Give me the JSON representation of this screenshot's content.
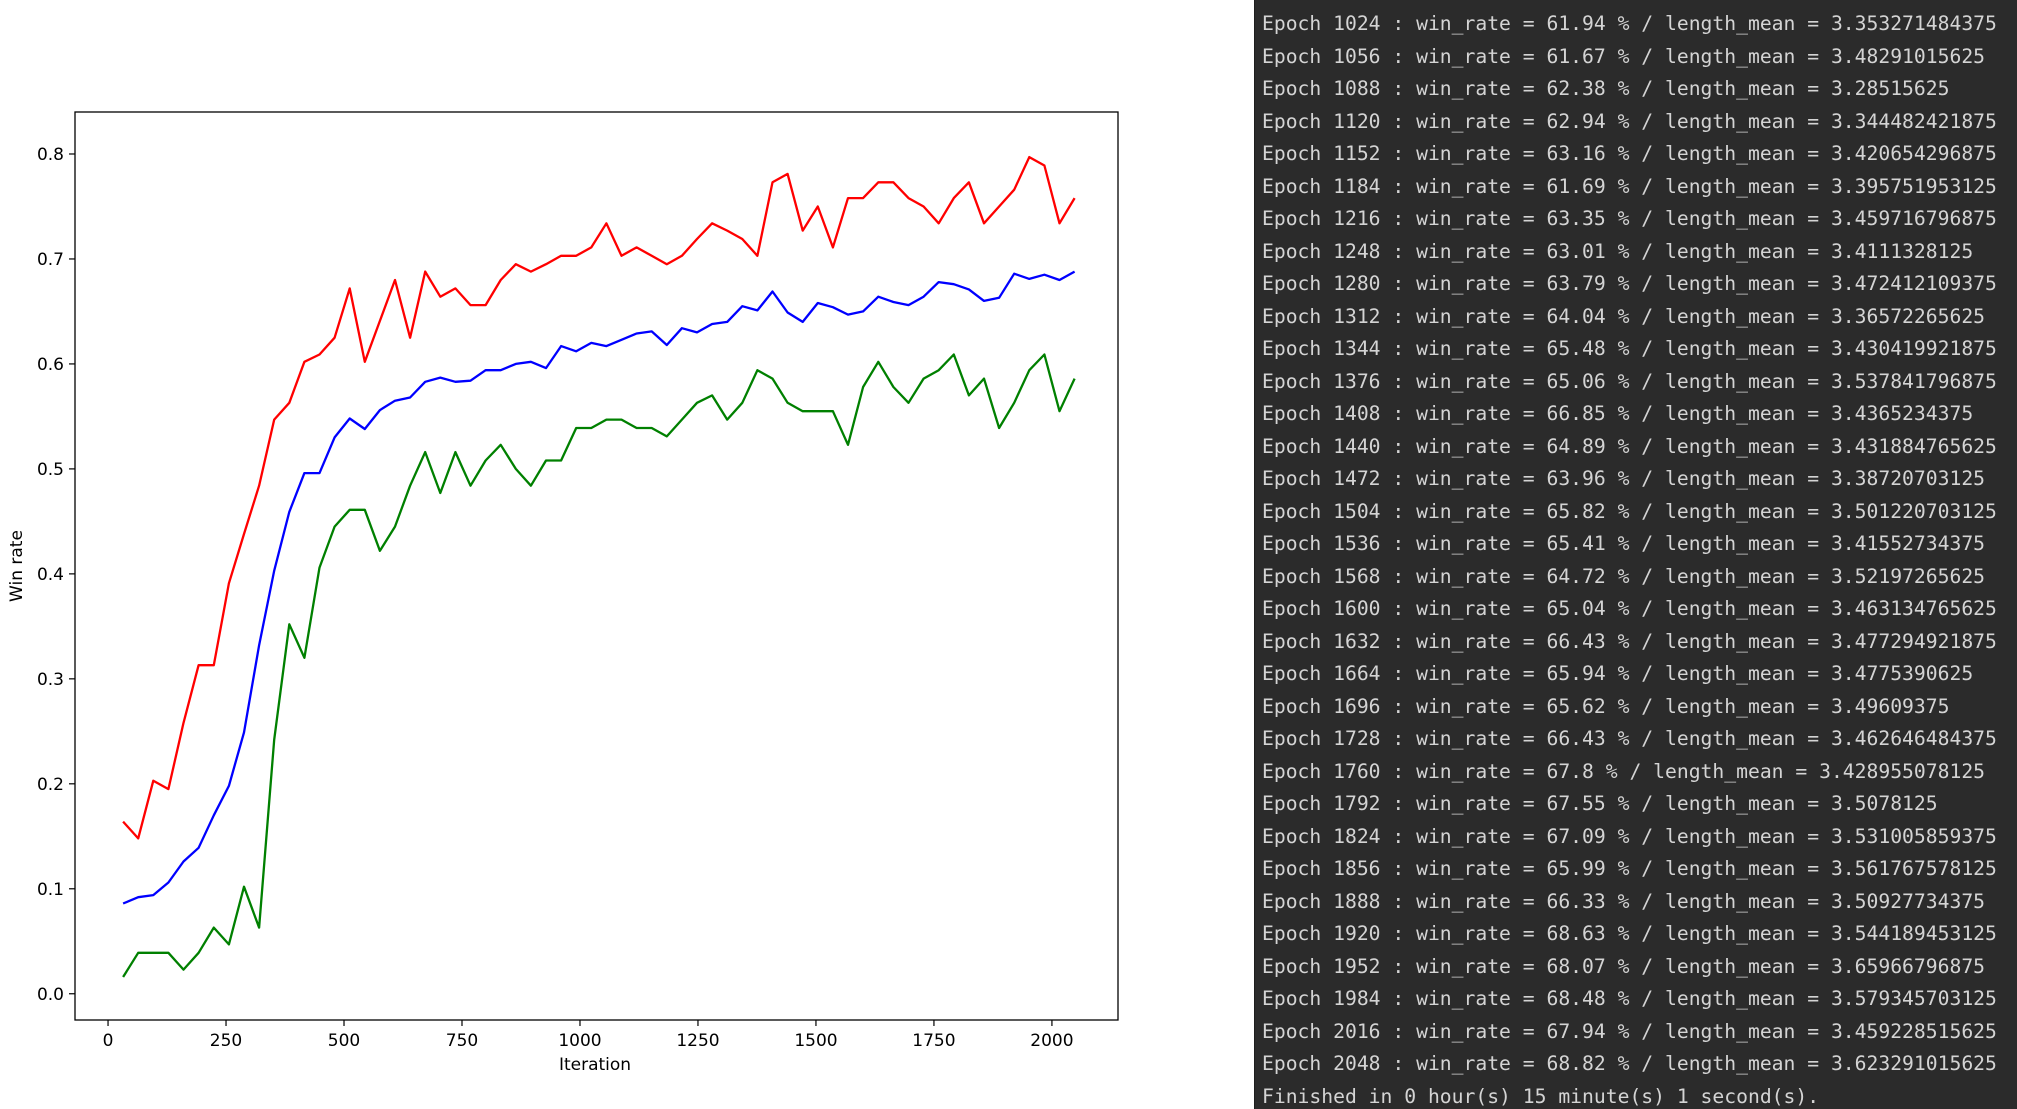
{
  "chart_data": {
    "type": "line",
    "title": "",
    "xlabel": "Iteration",
    "ylabel": "Win rate",
    "xlim": [
      -70,
      2140
    ],
    "ylim": [
      -0.025,
      0.84
    ],
    "x_ticks": [
      0,
      250,
      500,
      750,
      1000,
      1250,
      1500,
      1750,
      2000
    ],
    "y_ticks": [
      0.0,
      0.1,
      0.2,
      0.3,
      0.4,
      0.5,
      0.6,
      0.7,
      0.8
    ],
    "x_tick_labels": [
      "0",
      "250",
      "500",
      "750",
      "1000",
      "1250",
      "1500",
      "1750",
      "2000"
    ],
    "y_tick_labels": [
      "0.0",
      "0.1",
      "0.2",
      "0.3",
      "0.4",
      "0.5",
      "0.6",
      "0.7",
      "0.8"
    ],
    "grid": false,
    "x": [
      32,
      64,
      96,
      128,
      160,
      192,
      224,
      256,
      288,
      320,
      352,
      384,
      416,
      448,
      480,
      512,
      544,
      576,
      608,
      640,
      672,
      704,
      736,
      768,
      800,
      832,
      864,
      896,
      928,
      960,
      992,
      1024,
      1056,
      1088,
      1120,
      1152,
      1184,
      1216,
      1248,
      1280,
      1312,
      1344,
      1376,
      1408,
      1440,
      1472,
      1504,
      1536,
      1568,
      1600,
      1632,
      1664,
      1696,
      1728,
      1760,
      1792,
      1824,
      1856,
      1888,
      1920,
      1952,
      1984,
      2016,
      2048
    ],
    "series": [
      {
        "color": "#ff0000",
        "values": [
          0.164,
          0.148,
          0.203,
          0.195,
          0.258,
          0.313,
          0.313,
          0.391,
          0.438,
          0.484,
          0.547,
          0.563,
          0.602,
          0.609,
          0.625,
          0.672,
          0.602,
          0.641,
          0.68,
          0.625,
          0.688,
          0.664,
          0.672,
          0.656,
          0.656,
          0.68,
          0.695,
          0.688,
          0.695,
          0.703,
          0.703,
          0.711,
          0.734,
          0.703,
          0.711,
          0.703,
          0.695,
          0.703,
          0.719,
          0.734,
          0.727,
          0.719,
          0.703,
          0.773,
          0.781,
          0.727,
          0.75,
          0.711,
          0.758,
          0.758,
          0.773,
          0.773,
          0.758,
          0.75,
          0.734,
          0.758,
          0.773,
          0.734,
          0.75,
          0.766,
          0.797,
          0.789,
          0.734,
          0.758
        ]
      },
      {
        "color": "#0000ff",
        "values": [
          0.086,
          0.092,
          0.094,
          0.106,
          0.126,
          0.139,
          0.17,
          0.198,
          0.249,
          0.332,
          0.403,
          0.459,
          0.496,
          0.496,
          0.53,
          0.548,
          0.538,
          0.556,
          0.565,
          0.568,
          0.583,
          0.587,
          0.583,
          0.584,
          0.594,
          0.594,
          0.6,
          0.602,
          0.596,
          0.617,
          0.612,
          0.62,
          0.617,
          0.623,
          0.629,
          0.631,
          0.618,
          0.634,
          0.63,
          0.638,
          0.64,
          0.655,
          0.651,
          0.669,
          0.649,
          0.64,
          0.658,
          0.654,
          0.647,
          0.65,
          0.664,
          0.659,
          0.656,
          0.664,
          0.678,
          0.676,
          0.671,
          0.66,
          0.663,
          0.686,
          0.681,
          0.685,
          0.68,
          0.688
        ]
      },
      {
        "color": "#008000",
        "values": [
          0.016,
          0.039,
          0.039,
          0.039,
          0.023,
          0.039,
          0.063,
          0.047,
          0.102,
          0.063,
          0.242,
          0.352,
          0.32,
          0.406,
          0.445,
          0.461,
          0.461,
          0.422,
          0.445,
          0.484,
          0.516,
          0.477,
          0.516,
          0.484,
          0.508,
          0.523,
          0.5,
          0.484,
          0.508,
          0.508,
          0.539,
          0.539,
          0.547,
          0.547,
          0.539,
          0.539,
          0.531,
          0.547,
          0.563,
          0.57,
          0.547,
          0.563,
          0.594,
          0.586,
          0.563,
          0.555,
          0.555,
          0.555,
          0.523,
          0.578,
          0.602,
          0.578,
          0.563,
          0.586,
          0.594,
          0.609,
          0.57,
          0.586,
          0.539,
          0.563,
          0.594,
          0.609,
          0.555,
          0.586
        ]
      }
    ]
  },
  "terminal": {
    "lines": [
      "Epoch 1024 : win_rate = 61.94 % / length_mean = 3.353271484375",
      "Epoch 1056 : win_rate = 61.67 % / length_mean = 3.48291015625",
      "Epoch 1088 : win_rate = 62.38 % / length_mean = 3.28515625",
      "Epoch 1120 : win_rate = 62.94 % / length_mean = 3.344482421875",
      "Epoch 1152 : win_rate = 63.16 % / length_mean = 3.420654296875",
      "Epoch 1184 : win_rate = 61.69 % / length_mean = 3.395751953125",
      "Epoch 1216 : win_rate = 63.35 % / length_mean = 3.459716796875",
      "Epoch 1248 : win_rate = 63.01 % / length_mean = 3.4111328125",
      "Epoch 1280 : win_rate = 63.79 % / length_mean = 3.472412109375",
      "Epoch 1312 : win_rate = 64.04 % / length_mean = 3.36572265625",
      "Epoch 1344 : win_rate = 65.48 % / length_mean = 3.430419921875",
      "Epoch 1376 : win_rate = 65.06 % / length_mean = 3.537841796875",
      "Epoch 1408 : win_rate = 66.85 % / length_mean = 3.4365234375",
      "Epoch 1440 : win_rate = 64.89 % / length_mean = 3.431884765625",
      "Epoch 1472 : win_rate = 63.96 % / length_mean = 3.38720703125",
      "Epoch 1504 : win_rate = 65.82 % / length_mean = 3.501220703125",
      "Epoch 1536 : win_rate = 65.41 % / length_mean = 3.41552734375",
      "Epoch 1568 : win_rate = 64.72 % / length_mean = 3.52197265625",
      "Epoch 1600 : win_rate = 65.04 % / length_mean = 3.463134765625",
      "Epoch 1632 : win_rate = 66.43 % / length_mean = 3.477294921875",
      "Epoch 1664 : win_rate = 65.94 % / length_mean = 3.4775390625",
      "Epoch 1696 : win_rate = 65.62 % / length_mean = 3.49609375",
      "Epoch 1728 : win_rate = 66.43 % / length_mean = 3.462646484375",
      "Epoch 1760 : win_rate = 67.8 % / length_mean = 3.428955078125",
      "Epoch 1792 : win_rate = 67.55 % / length_mean = 3.5078125",
      "Epoch 1824 : win_rate = 67.09 % / length_mean = 3.531005859375",
      "Epoch 1856 : win_rate = 65.99 % / length_mean = 3.561767578125",
      "Epoch 1888 : win_rate = 66.33 % / length_mean = 3.50927734375",
      "Epoch 1920 : win_rate = 68.63 % / length_mean = 3.544189453125",
      "Epoch 1952 : win_rate = 68.07 % / length_mean = 3.65966796875",
      "Epoch 1984 : win_rate = 68.48 % / length_mean = 3.579345703125",
      "Epoch 2016 : win_rate = 67.94 % / length_mean = 3.459228515625",
      "Epoch 2048 : win_rate = 68.82 % / length_mean = 3.623291015625",
      "Finished in 0 hour(s) 15 minute(s) 1 second(s)."
    ]
  }
}
